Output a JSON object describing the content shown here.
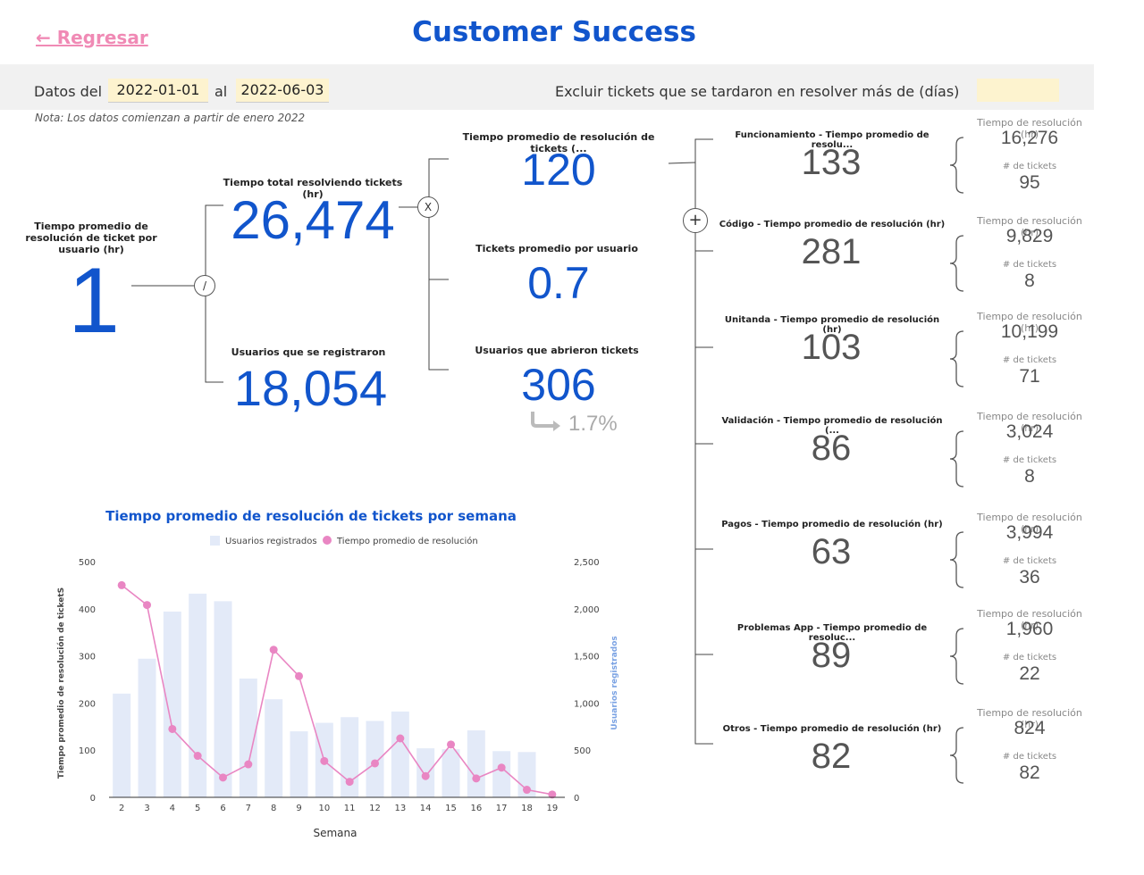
{
  "header": {
    "back_label": "← Regresar",
    "title": "Customer Success"
  },
  "filters": {
    "from_label": "Datos del",
    "from_date": "2022-01-01",
    "to_label": "al",
    "to_date": "2022-06-03",
    "exclude_label": "Excluir tickets que se tardaron en resolver más de (días)",
    "exclude_value": ""
  },
  "note": "Nota: Los datos comienzan a partir de enero 2022",
  "kpis": {
    "avg_per_user": {
      "label": "Tiempo promedio de resolución de ticket por usuario (hr)",
      "value": "1"
    },
    "total_time": {
      "label": "Tiempo total resolviendo tickets (hr)",
      "value": "26,474"
    },
    "users_registered": {
      "label": "Usuarios que se registraron",
      "value": "18,054"
    },
    "avg_resolution": {
      "label": "Tiempo promedio de resolución de tickets (...",
      "value": "120"
    },
    "tickets_per_user": {
      "label": "Tickets promedio por usuario",
      "value": "0.7"
    },
    "users_opened": {
      "label": "Usuarios que abrieron tickets",
      "value": "306",
      "pct": "1.7%"
    }
  },
  "operators": {
    "divide": "/",
    "multiply": "X",
    "plus": "+"
  },
  "side_labels": {
    "time": "Tiempo de resolución (hr)",
    "tickets": "# de tickets"
  },
  "categories": [
    {
      "label": "Funcionamiento - Tiempo promedio de resolu...",
      "value": "133",
      "time": "16,276",
      "tickets": "95"
    },
    {
      "label": "Código - Tiempo promedio de resolución (hr)",
      "value": "281",
      "time": "9,829",
      "tickets": "8"
    },
    {
      "label": "Unitanda - Tiempo promedio de resolución (hr)",
      "value": "103",
      "time": "10,199",
      "tickets": "71"
    },
    {
      "label": "Validación - Tiempo promedio de resolución (...",
      "value": "86",
      "time": "3,024",
      "tickets": "8"
    },
    {
      "label": "Pagos - Tiempo promedio de resolución (hr)",
      "value": "63",
      "time": "3,994",
      "tickets": "36"
    },
    {
      "label": "Problemas App - Tiempo promedio de resoluc...",
      "value": "89",
      "time": "1,960",
      "tickets": "22"
    },
    {
      "label": "Otros - Tiempo promedio de resolución (hr)",
      "value": "82",
      "time": "824",
      "tickets": "82"
    }
  ],
  "colors": {
    "accent": "#1155cc",
    "pink": "#f08ab5",
    "bar": "#e3eaf8",
    "line": "#e986c3",
    "date_bg": "#fdf3cf"
  },
  "chart_data": {
    "type": "bar",
    "title": "Tiempo promedio de resolución de tickets por semana",
    "xlabel": "Semana",
    "ylabel": "Tiempo promedio de resolución de ticketS",
    "y2label": "Usuarios registrados",
    "categories": [
      "2",
      "3",
      "4",
      "5",
      "6",
      "7",
      "8",
      "9",
      "10",
      "11",
      "12",
      "13",
      "14",
      "15",
      "16",
      "17",
      "18",
      "19"
    ],
    "ylim": [
      0,
      500
    ],
    "y2lim": [
      0,
      2500
    ],
    "yticks": [
      "0",
      "100",
      "200",
      "300",
      "400",
      "500"
    ],
    "y2ticks": [
      "0",
      "500",
      "1,000",
      "1,500",
      "2,000",
      "2,500"
    ],
    "legend_position": "top",
    "series": [
      {
        "name": "Usuarios registrados",
        "kind": "bar",
        "axis": "right",
        "values": [
          1100,
          1470,
          1970,
          2160,
          2080,
          1260,
          1040,
          700,
          790,
          850,
          810,
          910,
          520,
          510,
          710,
          490,
          480,
          0
        ]
      },
      {
        "name": "Tiempo promedio de resolución",
        "kind": "line",
        "axis": "left",
        "values": [
          450,
          408,
          145,
          88,
          42,
          70,
          313,
          257,
          77,
          33,
          72,
          125,
          45,
          112,
          40,
          63,
          16,
          6
        ]
      }
    ]
  }
}
